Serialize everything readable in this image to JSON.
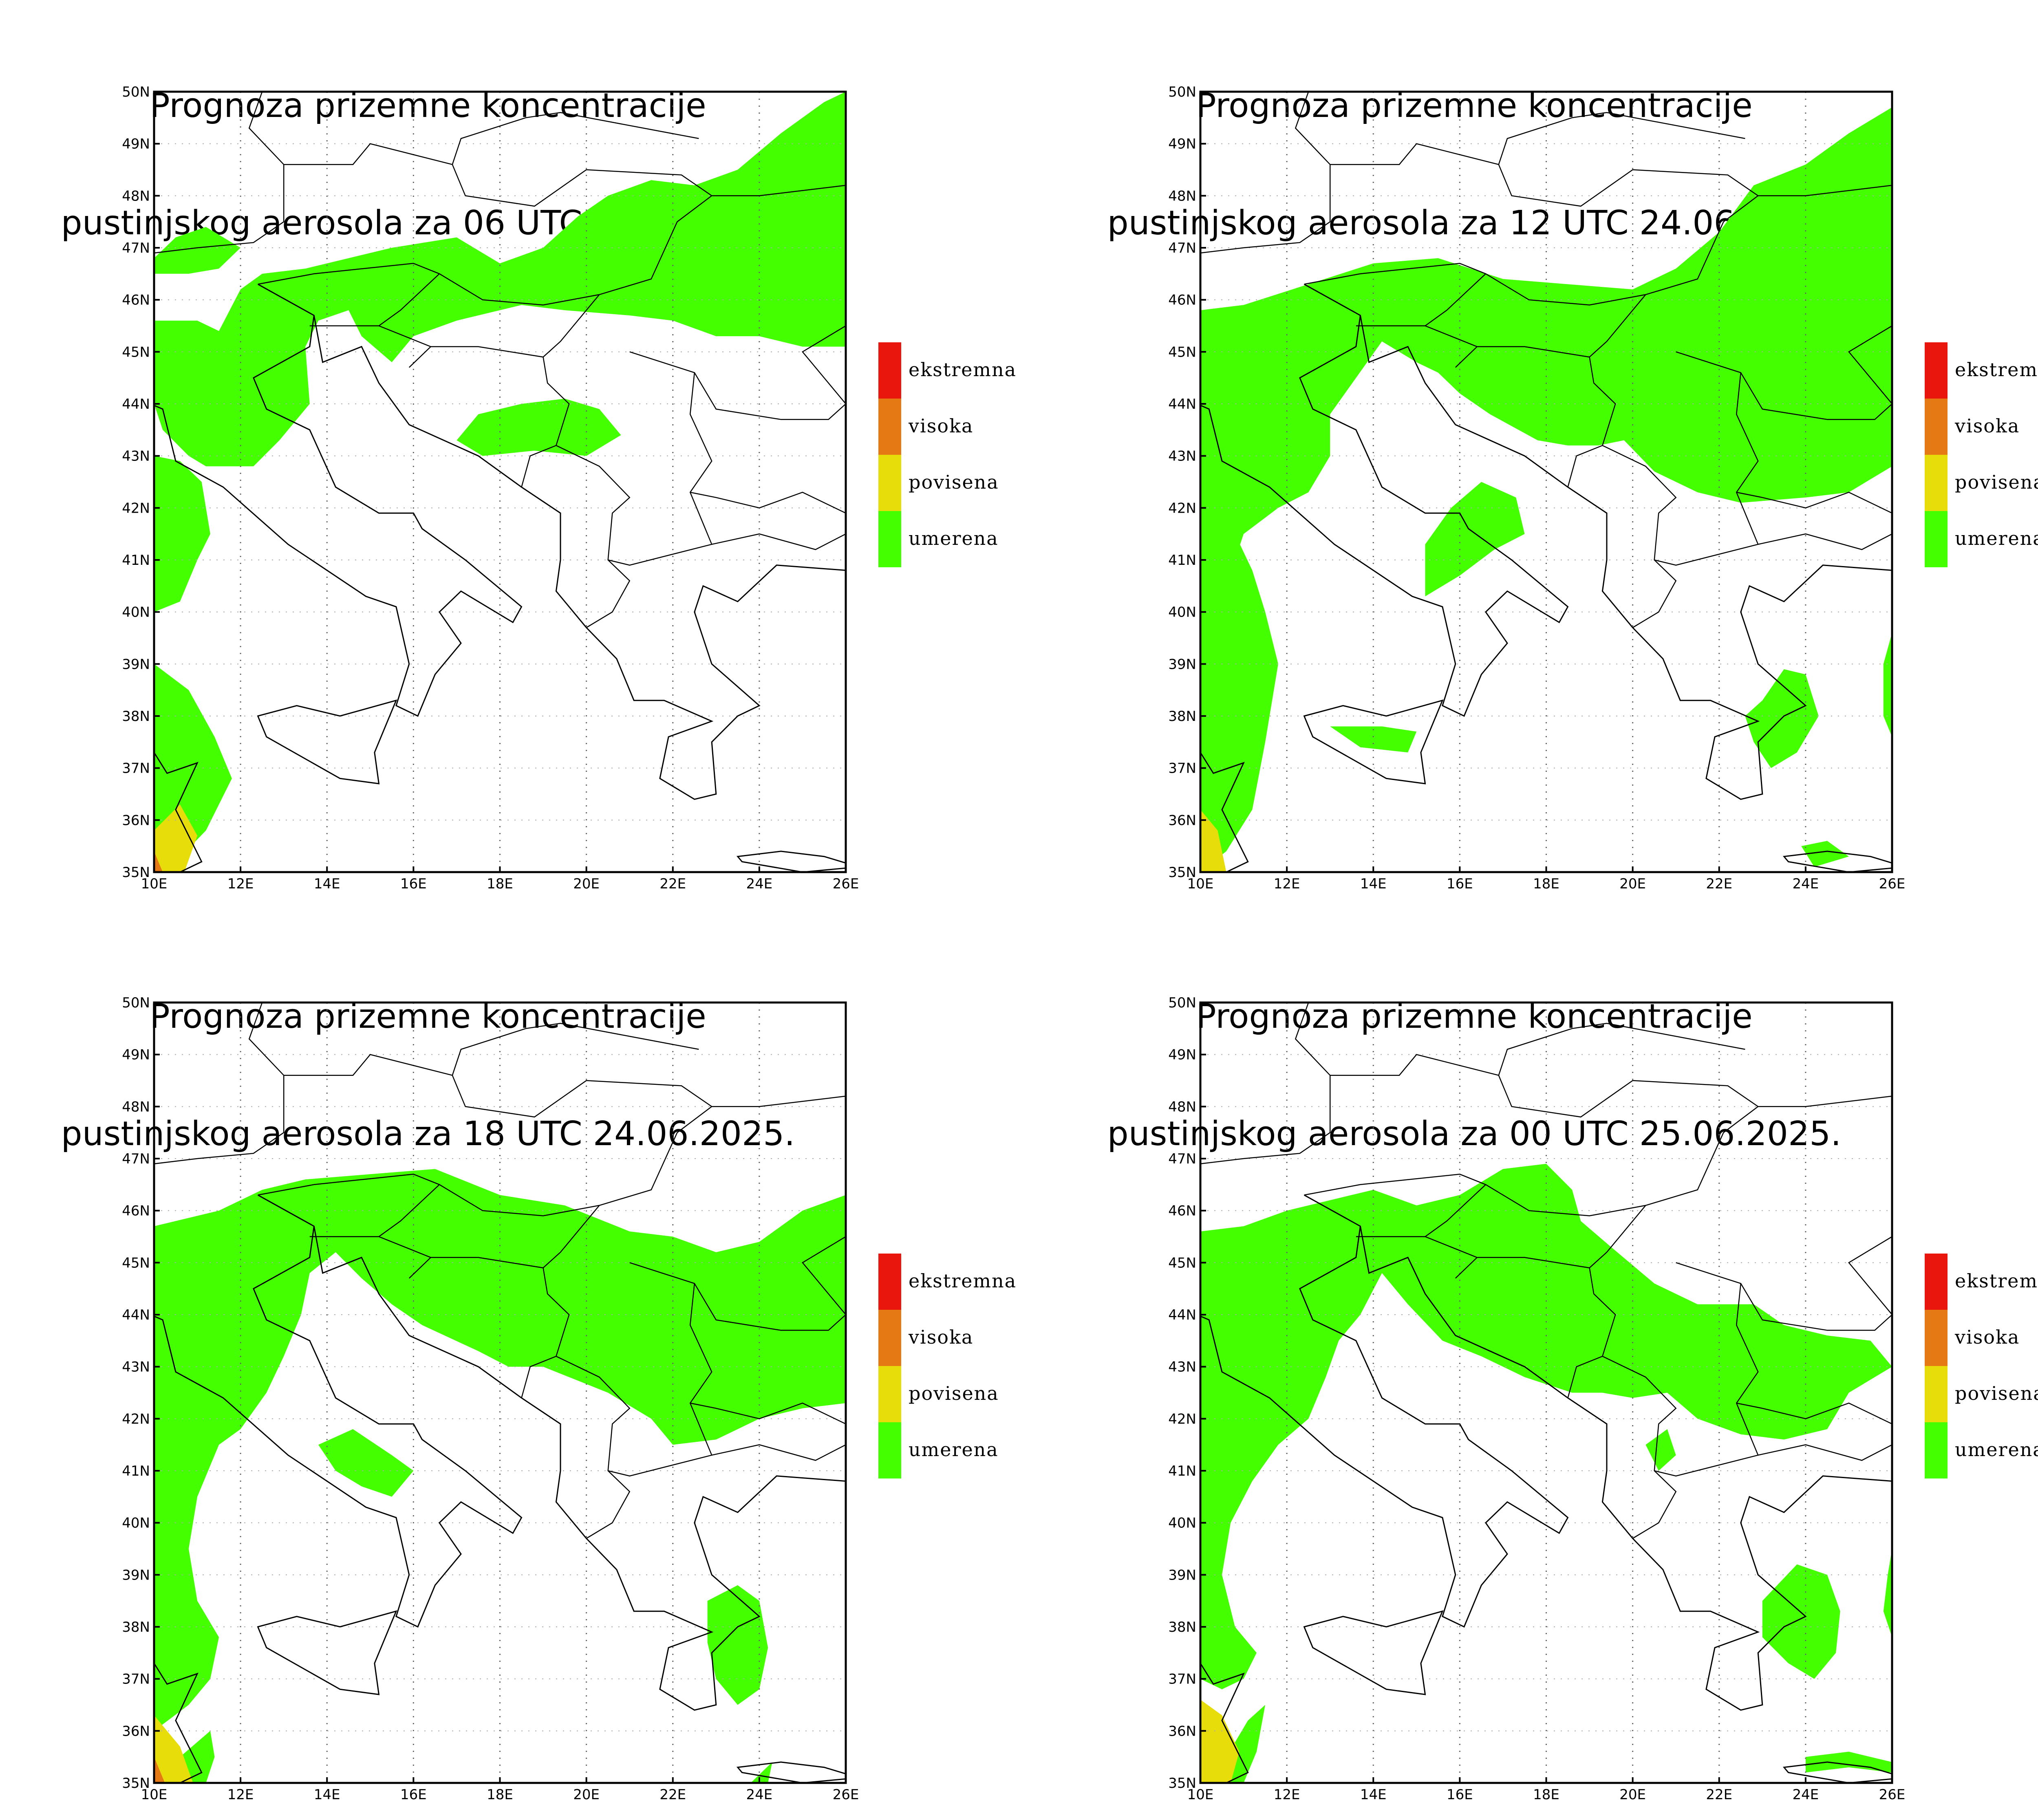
{
  "panels": [
    {
      "title_line1": "Prognoza prizemne koncentracije",
      "title_line2": "pustinjskog aerosola za 06 UTC 24.06.2025."
    },
    {
      "title_line1": "Prognoza prizemne koncentracije",
      "title_line2": "pustinjskog aerosola za 12 UTC 24.06.2025."
    },
    {
      "title_line1": "Prognoza prizemne koncentracije",
      "title_line2": "pustinjskog aerosola za 18 UTC 24.06.2025."
    },
    {
      "title_line1": "Prognoza prizemne koncentracije",
      "title_line2": "pustinjskog aerosola za 00 UTC 25.06.2025."
    }
  ],
  "axes": {
    "lon_labels": [
      "10E",
      "12E",
      "14E",
      "16E",
      "18E",
      "20E",
      "22E",
      "24E",
      "26E"
    ],
    "lat_labels": [
      "35N",
      "36N",
      "37N",
      "38N",
      "39N",
      "40N",
      "41N",
      "42N",
      "43N",
      "44N",
      "45N",
      "46N",
      "47N",
      "48N",
      "49N",
      "50N"
    ],
    "grid": "dotted"
  },
  "legend": [
    {
      "label": "ekstremna",
      "color": "#e8160c"
    },
    {
      "label": "visoka",
      "color": "#e57a14"
    },
    {
      "label": "povisena",
      "color": "#e6dd0a"
    },
    {
      "label": "umerena",
      "color": "#44ff00"
    }
  ],
  "colors": {
    "umerena": "#44ff00",
    "povisena": "#e6dd0a",
    "visoka": "#e57a14",
    "ekstremna": "#e8160c"
  }
}
